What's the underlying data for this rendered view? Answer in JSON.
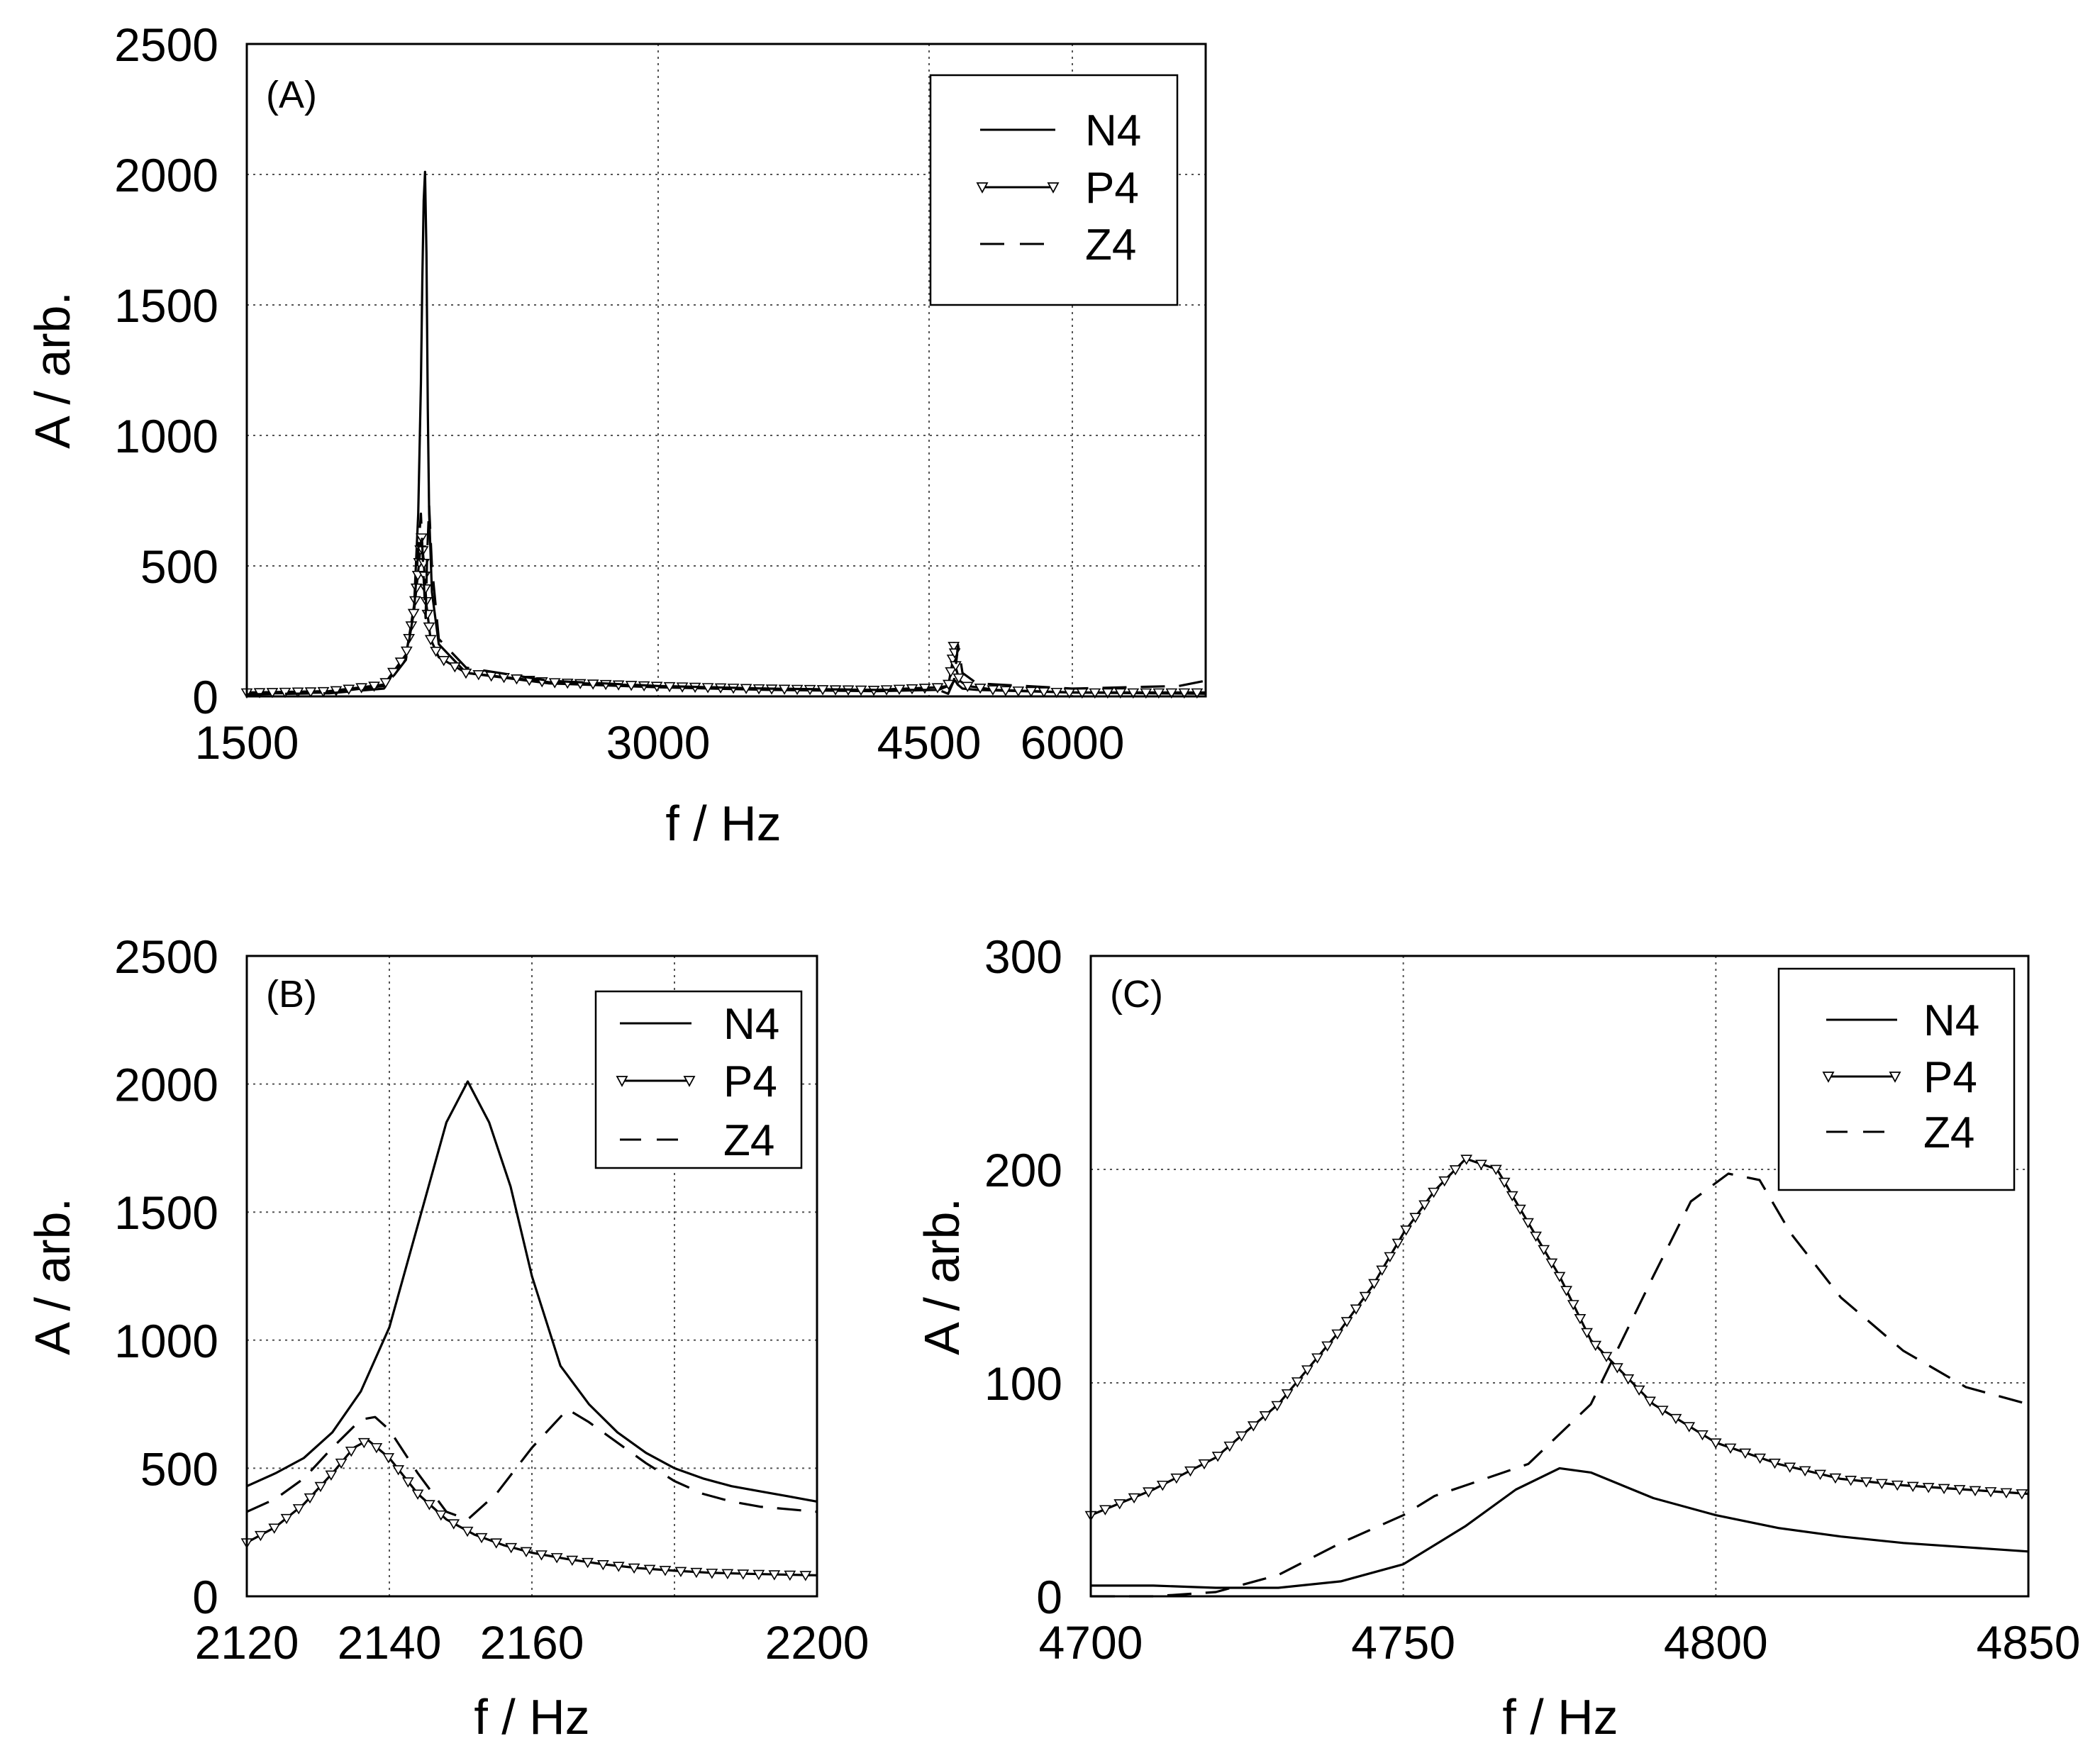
{
  "figure": {
    "background": "#ffffff",
    "ink": "#000000",
    "grid_color": "#555555"
  },
  "chart_data": [
    {
      "id": "A",
      "type": "line",
      "panel_label": "(A)",
      "xlabel": "f / Hz",
      "ylabel": "A / arb.",
      "xlim": [
        1500,
        7000
      ],
      "ylim": [
        0,
        2500
      ],
      "xticks": [
        1500,
        3000,
        4500,
        6000
      ],
      "xtick_labels": [
        "1500",
        "3000",
        "4500",
        "6000"
      ],
      "xgrid": [
        3000,
        4500,
        6000
      ],
      "yticks": [
        0,
        500,
        1000,
        1500,
        2000,
        2500
      ],
      "ytick_labels": [
        "0",
        "500",
        "1000",
        "1500",
        "2000",
        "2500"
      ],
      "grid": true,
      "legend": {
        "position": "top-right",
        "entries": [
          "N4",
          "P4",
          "Z4"
        ]
      },
      "series": [
        {
          "name": "N4",
          "style": "solid",
          "x": [
            1500,
            1800,
            2000,
            2080,
            2110,
            2125,
            2135,
            2140,
            2145,
            2150,
            2155,
            2160,
            2165,
            2175,
            2200,
            2300,
            2600,
            3000,
            3600,
            4200,
            4600,
            4700,
            4750,
            4775,
            4800,
            4850,
            5000,
            6000,
            7000
          ],
          "y": [
            10,
            15,
            40,
            150,
            350,
            700,
            1200,
            1600,
            1900,
            2010,
            1700,
            1100,
            700,
            400,
            200,
            90,
            50,
            35,
            25,
            20,
            25,
            40,
            55,
            60,
            45,
            30,
            25,
            15,
            10
          ]
        },
        {
          "name": "P4",
          "style": "solid-triangle",
          "x": [
            1500,
            1800,
            2000,
            2080,
            2110,
            2125,
            2137,
            2145,
            2155,
            2170,
            2200,
            2300,
            2600,
            3000,
            3600,
            4200,
            4600,
            4700,
            4740,
            4761,
            4780,
            4820,
            4900,
            5200,
            6000,
            7000
          ],
          "y": [
            15,
            20,
            45,
            160,
            330,
            480,
            610,
            520,
            350,
            220,
            150,
            90,
            55,
            40,
            30,
            25,
            35,
            40,
            120,
            205,
            110,
            60,
            40,
            25,
            15,
            15
          ]
        },
        {
          "name": "Z4",
          "style": "dashed",
          "x": [
            1500,
            1800,
            2000,
            2080,
            2110,
            2125,
            2135,
            2145,
            2152,
            2158,
            2165,
            2175,
            2200,
            2300,
            2600,
            3000,
            3600,
            4200,
            4600,
            4700,
            4760,
            4790,
            4802,
            4820,
            4850,
            5000,
            6000,
            6800,
            7000
          ],
          "y": [
            8,
            12,
            30,
            140,
            330,
            560,
            700,
            450,
            300,
            550,
            730,
            500,
            220,
            110,
            60,
            40,
            30,
            25,
            25,
            10,
            60,
            150,
            198,
            160,
            90,
            50,
            30,
            40,
            60
          ]
        }
      ]
    },
    {
      "id": "B",
      "type": "line",
      "panel_label": "(B)",
      "xlabel": "f / Hz",
      "ylabel": "A / arb.",
      "xlim": [
        2120,
        2200
      ],
      "ylim": [
        0,
        2500
      ],
      "xticks": [
        2120,
        2140,
        2160,
        2200
      ],
      "xtick_labels": [
        "2120",
        "2140",
        "2160",
        "2200"
      ],
      "xgrid": [
        2140,
        2160,
        2180
      ],
      "yticks": [
        0,
        500,
        1000,
        1500,
        2000,
        2500
      ],
      "ytick_labels": [
        "0",
        "500",
        "1000",
        "1500",
        "2000",
        "2500"
      ],
      "grid": true,
      "legend": {
        "position": "top-right",
        "entries": [
          "N4",
          "P4",
          "Z4"
        ]
      },
      "series": [
        {
          "name": "N4",
          "style": "solid",
          "x": [
            2120,
            2124,
            2128,
            2132,
            2136,
            2140,
            2144,
            2148,
            2151,
            2154,
            2157,
            2160,
            2164,
            2168,
            2172,
            2176,
            2180,
            2184,
            2188,
            2192,
            2196,
            2200
          ],
          "y": [
            430,
            480,
            540,
            640,
            800,
            1050,
            1450,
            1850,
            2010,
            1850,
            1600,
            1250,
            900,
            750,
            640,
            560,
            500,
            460,
            430,
            410,
            390,
            370
          ]
        },
        {
          "name": "P4",
          "style": "solid-triangle",
          "x": [
            2120,
            2124,
            2128,
            2132,
            2135,
            2137,
            2140,
            2144,
            2148,
            2152,
            2156,
            2160,
            2165,
            2170,
            2175,
            2180,
            2185,
            2190,
            2195,
            2200
          ],
          "y": [
            210,
            270,
            360,
            480,
            580,
            610,
            540,
            400,
            300,
            240,
            200,
            170,
            145,
            125,
            110,
            100,
            92,
            88,
            85,
            82
          ]
        },
        {
          "name": "Z4",
          "style": "dashed",
          "x": [
            2120,
            2124,
            2128,
            2132,
            2136,
            2138,
            2140,
            2144,
            2148,
            2151,
            2155,
            2160,
            2165,
            2168,
            2172,
            2176,
            2180,
            2184,
            2188,
            2192,
            2196,
            2200
          ],
          "y": [
            330,
            380,
            460,
            580,
            690,
            700,
            650,
            480,
            330,
            300,
            400,
            580,
            730,
            680,
            600,
            520,
            450,
            400,
            370,
            350,
            340,
            330
          ]
        }
      ]
    },
    {
      "id": "C",
      "type": "line",
      "panel_label": "(C)",
      "xlabel": "f / Hz",
      "ylabel": "A / arb.",
      "xlim": [
        4700,
        4850
      ],
      "ylim": [
        0,
        300
      ],
      "xticks": [
        4700,
        4750,
        4800,
        4850
      ],
      "xtick_labels": [
        "4700",
        "4750",
        "4800",
        "4850"
      ],
      "xgrid": [
        4750,
        4800
      ],
      "yticks": [
        0,
        100,
        200,
        300
      ],
      "ytick_labels": [
        "0",
        "100",
        "200",
        "300"
      ],
      "grid": true,
      "legend": {
        "position": "top-right",
        "entries": [
          "N4",
          "P4",
          "Z4"
        ]
      },
      "series": [
        {
          "name": "N4",
          "style": "solid",
          "x": [
            4700,
            4710,
            4720,
            4730,
            4740,
            4750,
            4760,
            4768,
            4775,
            4780,
            4790,
            4800,
            4810,
            4820,
            4830,
            4840,
            4850
          ],
          "y": [
            5,
            5,
            4,
            4,
            7,
            15,
            33,
            50,
            60,
            58,
            46,
            38,
            32,
            28,
            25,
            23,
            21
          ]
        },
        {
          "name": "P4",
          "style": "solid-triangle",
          "x": [
            4700,
            4710,
            4720,
            4730,
            4740,
            4745,
            4750,
            4755,
            4760,
            4765,
            4770,
            4775,
            4780,
            4790,
            4800,
            4810,
            4820,
            4830,
            4840,
            4850
          ],
          "y": [
            38,
            50,
            65,
            90,
            125,
            145,
            170,
            190,
            205,
            200,
            175,
            150,
            120,
            90,
            72,
            62,
            55,
            52,
            50,
            48
          ]
        },
        {
          "name": "Z4",
          "style": "dashed",
          "x": [
            4700,
            4710,
            4720,
            4730,
            4740,
            4750,
            4755,
            4760,
            4770,
            4780,
            4790,
            4796,
            4802,
            4807,
            4812,
            4820,
            4830,
            4840,
            4850
          ],
          "y": [
            0,
            0,
            2,
            10,
            25,
            38,
            47,
            52,
            62,
            90,
            150,
            185,
            198,
            195,
            170,
            140,
            115,
            98,
            90
          ]
        }
      ]
    }
  ]
}
